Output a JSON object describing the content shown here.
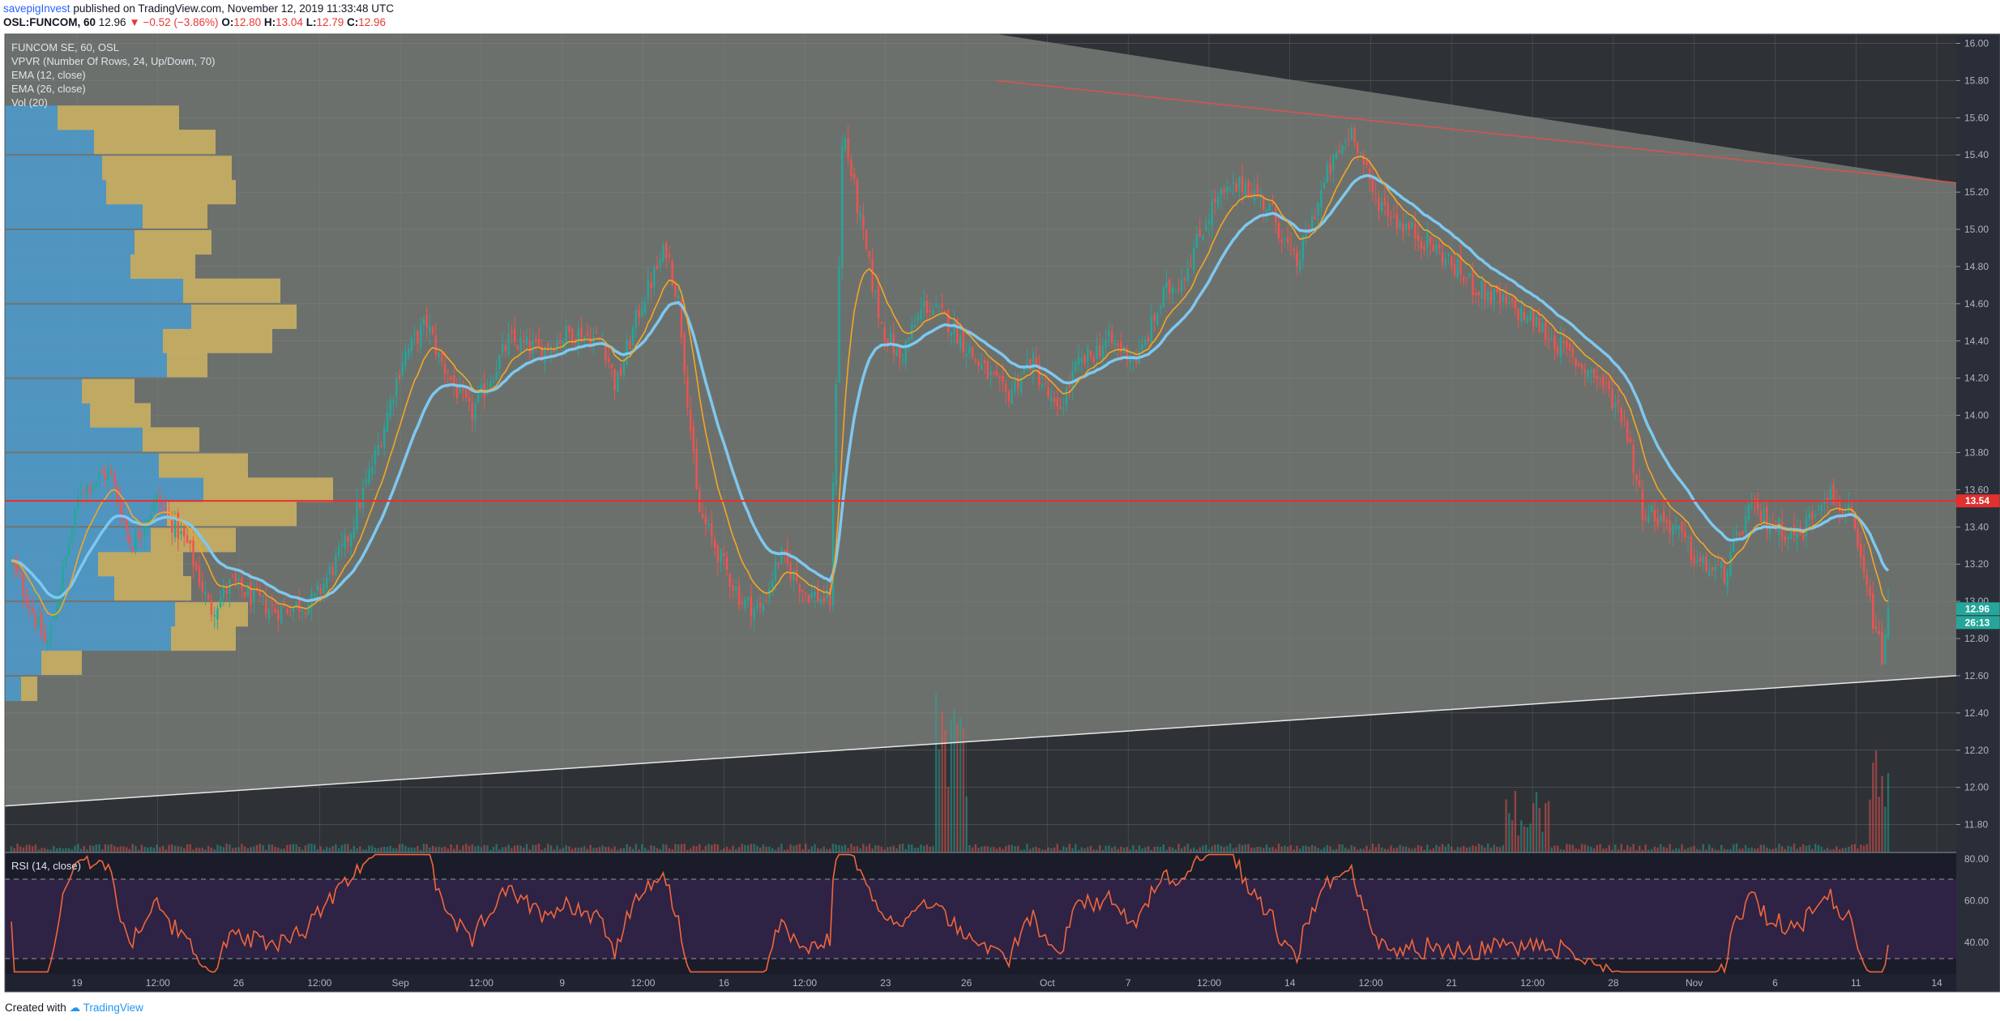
{
  "header": {
    "author": "savepigInvest",
    "published": " published on TradingView.com, November 12, 2019 11:33:48 UTC",
    "symbol": "OSL:FUNCOM, 60",
    "last": "12.96",
    "arrow": "▼",
    "change": "−0.52 (−3.86%)",
    "o_label": "O:",
    "o": "12.80",
    "h_label": "H:",
    "h": "13.04",
    "l_label": "L:",
    "l": "12.79",
    "c_label": "C:",
    "c": "12.96"
  },
  "legend": {
    "title": "FUNCOM SE, 60, OSL",
    "vpvr": "VPVR (Number Of Rows, 24, Up/Down, 70)",
    "ema12": "EMA (12, close)",
    "ema26": "EMA (26, close)",
    "vol": "Vol (20)"
  },
  "rsi_label": "RSI (14, close)",
  "footer": {
    "created": "Created with",
    "brand": "TradingView"
  },
  "colors": {
    "up": "#26a69a",
    "down": "#ef5350",
    "ema12": "#f5a623",
    "ema26": "#7ec8f0",
    "vpvr_up": "#4a9fd4",
    "vpvr_down": "#d4b862",
    "resistance": "#ef2c2c",
    "rsi": "#f0663a"
  },
  "chart_data": [
    {
      "type": "candlestick",
      "title": "FUNCOM SE, 60, OSL",
      "x_ticks": [
        "19",
        "12:00",
        "26",
        "12:00",
        "Sep",
        "12:00",
        "9",
        "12:00",
        "16",
        "12:00",
        "23",
        "26",
        "Oct",
        "7",
        "12:00",
        "14",
        "12:00",
        "21",
        "12:00",
        "28",
        "Nov",
        "6",
        "11",
        "14"
      ],
      "y_ticks": [
        "16.00",
        "15.80",
        "15.60",
        "15.40",
        "15.20",
        "15.00",
        "14.80",
        "14.60",
        "14.40",
        "14.20",
        "14.00",
        "13.80",
        "13.60",
        "13.40",
        "13.20",
        "13.00",
        "12.80",
        "12.60",
        "12.40",
        "12.20",
        "12.00",
        "11.80"
      ],
      "ylim": [
        11.65,
        16.05
      ],
      "price_anchors": [
        [
          0,
          13.2
        ],
        [
          14,
          13.0
        ],
        [
          28,
          12.75
        ],
        [
          55,
          13.6
        ],
        [
          78,
          13.7
        ],
        [
          95,
          13.3
        ],
        [
          115,
          13.55
        ],
        [
          140,
          13.3
        ],
        [
          158,
          12.95
        ],
        [
          175,
          13.1
        ],
        [
          195,
          13.0
        ],
        [
          210,
          12.95
        ],
        [
          240,
          13.0
        ],
        [
          265,
          13.3
        ],
        [
          290,
          13.8
        ],
        [
          310,
          14.3
        ],
        [
          330,
          14.5
        ],
        [
          340,
          14.3
        ],
        [
          365,
          14.0
        ],
        [
          395,
          14.4
        ],
        [
          420,
          14.35
        ],
        [
          445,
          14.45
        ],
        [
          470,
          14.4
        ],
        [
          480,
          14.15
        ],
        [
          500,
          14.6
        ],
        [
          520,
          14.9
        ],
        [
          530,
          14.6
        ],
        [
          545,
          13.5
        ],
        [
          565,
          13.2
        ],
        [
          580,
          13.0
        ],
        [
          595,
          12.95
        ],
        [
          610,
          13.25
        ],
        [
          630,
          13.05
        ],
        [
          650,
          13.0
        ],
        [
          660,
          15.55
        ],
        [
          675,
          15.0
        ],
        [
          690,
          14.5
        ],
        [
          705,
          14.3
        ],
        [
          725,
          14.6
        ],
        [
          745,
          14.5
        ],
        [
          765,
          14.3
        ],
        [
          790,
          14.1
        ],
        [
          810,
          14.3
        ],
        [
          830,
          14.0
        ],
        [
          845,
          14.25
        ],
        [
          870,
          14.4
        ],
        [
          895,
          14.3
        ],
        [
          915,
          14.65
        ],
        [
          930,
          14.75
        ],
        [
          955,
          15.15
        ],
        [
          980,
          15.25
        ],
        [
          1000,
          15.1
        ],
        [
          1020,
          14.8
        ],
        [
          1045,
          15.3
        ],
        [
          1065,
          15.55
        ],
        [
          1080,
          15.2
        ],
        [
          1100,
          15.05
        ],
        [
          1130,
          14.9
        ],
        [
          1160,
          14.7
        ],
        [
          1185,
          14.6
        ],
        [
          1210,
          14.5
        ],
        [
          1240,
          14.3
        ],
        [
          1260,
          14.2
        ],
        [
          1280,
          14.0
        ],
        [
          1295,
          13.5
        ],
        [
          1320,
          13.4
        ],
        [
          1340,
          13.2
        ],
        [
          1360,
          13.15
        ],
        [
          1380,
          13.5
        ],
        [
          1400,
          13.4
        ],
        [
          1420,
          13.35
        ],
        [
          1440,
          13.6
        ],
        [
          1460,
          13.45
        ],
        [
          1475,
          13.0
        ],
        [
          1485,
          12.7
        ],
        [
          1490,
          12.96
        ]
      ],
      "last_price": 12.96,
      "resistance_level": 13.54,
      "price_labels": {
        "resistance": "13.54",
        "last": "12.96",
        "countdown": "26:13"
      },
      "trend_upper": [
        [
          15.8,
          0.508
        ],
        [
          15.25,
          1.0
        ]
      ],
      "trend_lower": [
        [
          11.9,
          0.0
        ],
        [
          12.6,
          1.0
        ]
      ],
      "vpvr_rows": [
        {
          "price": 12.53,
          "up": 20,
          "down": 20
        },
        {
          "price": 12.67,
          "up": 45,
          "down": 50
        },
        {
          "price": 12.8,
          "up": 205,
          "down": 80
        },
        {
          "price": 12.93,
          "up": 210,
          "down": 90
        },
        {
          "price": 13.07,
          "up": 135,
          "down": 95
        },
        {
          "price": 13.2,
          "up": 115,
          "down": 105
        },
        {
          "price": 13.33,
          "up": 180,
          "down": 105
        },
        {
          "price": 13.47,
          "up": 200,
          "down": 160
        },
        {
          "price": 13.6,
          "up": 245,
          "down": 160
        },
        {
          "price": 13.73,
          "up": 190,
          "down": 110
        },
        {
          "price": 13.87,
          "up": 170,
          "down": 70
        },
        {
          "price": 14.0,
          "up": 105,
          "down": 75
        },
        {
          "price": 14.13,
          "up": 95,
          "down": 65
        },
        {
          "price": 14.27,
          "up": 200,
          "down": 50
        },
        {
          "price": 14.4,
          "up": 195,
          "down": 135
        },
        {
          "price": 14.53,
          "up": 230,
          "down": 130
        },
        {
          "price": 14.67,
          "up": 220,
          "down": 120
        },
        {
          "price": 14.8,
          "up": 155,
          "down": 80
        },
        {
          "price": 14.93,
          "up": 160,
          "down": 95
        },
        {
          "price": 15.07,
          "up": 170,
          "down": 80
        },
        {
          "price": 15.2,
          "up": 125,
          "down": 160
        },
        {
          "price": 15.33,
          "up": 120,
          "down": 160
        },
        {
          "price": 15.47,
          "up": 110,
          "down": 150
        },
        {
          "price": 15.6,
          "up": 65,
          "down": 150
        }
      ]
    },
    {
      "type": "line",
      "title": "RSI (14, close)",
      "y_ticks": [
        "80.00",
        "60.00",
        "40.00"
      ],
      "ylim": [
        25,
        83
      ],
      "bands": [
        30,
        70
      ]
    }
  ]
}
